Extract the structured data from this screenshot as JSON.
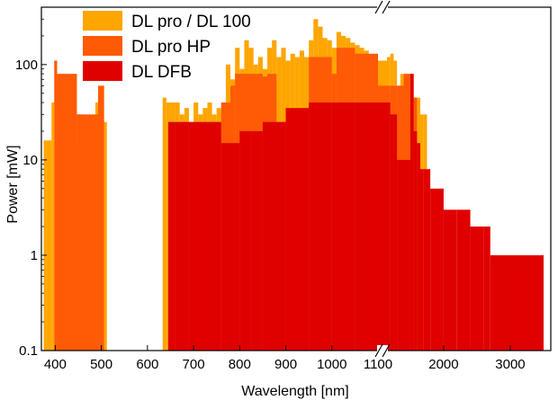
{
  "chart_data": {
    "type": "area",
    "xlabel": "Wavelength [nm]",
    "ylabel": "Power [mW]",
    "y_scale": "log",
    "ylim": [
      0.1,
      400
    ],
    "x_axis_break": "between 1100 nm and 1150 nm (//); linear 370–1100 nm on the left segment, compressed 1150–3500 nm on the right segment",
    "x_segments": [
      {
        "range": [
          370,
          1100
        ],
        "ticks": [
          400,
          500,
          600,
          700,
          800,
          900,
          1000,
          1100
        ]
      },
      {
        "range": [
          1150,
          3500
        ],
        "ticks": [
          2000,
          3000
        ]
      }
    ],
    "x_tick_labels": [
      "400",
      "500",
      "600",
      "700",
      "800",
      "900",
      "1000",
      "1100",
      "2000",
      "3000"
    ],
    "y_tick_labels": [
      "0.1",
      "1",
      "10",
      "100"
    ],
    "y_ticks": [
      0.1,
      1,
      10,
      100
    ],
    "legend_position": "top-left",
    "series": [
      {
        "name": "DL pro / DL 100",
        "color": "#ffa500",
        "points": [
          [
            375,
            16
          ],
          [
            381,
            16
          ],
          [
            392,
            40
          ],
          [
            398,
            110
          ],
          [
            404,
            40
          ],
          [
            410,
            45
          ],
          [
            416,
            40
          ],
          [
            420,
            45
          ],
          [
            425,
            40
          ],
          [
            442,
            15
          ],
          [
            447,
            30
          ],
          [
            452,
            30
          ],
          [
            458,
            15
          ],
          [
            465,
            20
          ],
          [
            472,
            25
          ],
          [
            478,
            15
          ],
          [
            487,
            40
          ],
          [
            493,
            10
          ],
          [
            500,
            25
          ],
          [
            506,
            25
          ],
          [
            512,
            10
          ],
          [
            633,
            45
          ],
          [
            641,
            40
          ],
          [
            650,
            40
          ],
          [
            660,
            40
          ],
          [
            670,
            30
          ],
          [
            680,
            35
          ],
          [
            690,
            25
          ],
          [
            700,
            40
          ],
          [
            710,
            30
          ],
          [
            720,
            35
          ],
          [
            730,
            40
          ],
          [
            740,
            30
          ],
          [
            750,
            35
          ],
          [
            760,
            40
          ],
          [
            770,
            100
          ],
          [
            780,
            70
          ],
          [
            790,
            150
          ],
          [
            800,
            90
          ],
          [
            810,
            180
          ],
          [
            820,
            150
          ],
          [
            830,
            100
          ],
          [
            840,
            120
          ],
          [
            850,
            90
          ],
          [
            860,
            150
          ],
          [
            870,
            180
          ],
          [
            880,
            120
          ],
          [
            890,
            150
          ],
          [
            900,
            110
          ],
          [
            910,
            130
          ],
          [
            920,
            120
          ],
          [
            930,
            140
          ],
          [
            940,
            120
          ],
          [
            950,
            180
          ],
          [
            960,
            300
          ],
          [
            970,
            250
          ],
          [
            980,
            190
          ],
          [
            990,
            180
          ],
          [
            1000,
            150
          ],
          [
            1010,
            220
          ],
          [
            1020,
            200
          ],
          [
            1030,
            190
          ],
          [
            1040,
            170
          ],
          [
            1050,
            160
          ],
          [
            1060,
            150
          ],
          [
            1070,
            140
          ],
          [
            1080,
            120
          ],
          [
            1090,
            110
          ],
          [
            1100,
            110
          ],
          [
            1150,
            120
          ],
          [
            1200,
            130
          ],
          [
            1250,
            110
          ],
          [
            1300,
            60
          ],
          [
            1350,
            80
          ],
          [
            1400,
            50
          ],
          [
            1450,
            30
          ],
          [
            1500,
            65
          ],
          [
            1550,
            45
          ],
          [
            1600,
            45
          ],
          [
            1650,
            30
          ],
          [
            1700,
            30
          ],
          [
            1750,
            25
          ]
        ]
      },
      {
        "name": "DL pro HP",
        "color": "#ff5a05",
        "points": [
          [
            398,
            110
          ],
          [
            404,
            80
          ],
          [
            447,
            30
          ],
          [
            493,
            60
          ],
          [
            506,
            25
          ],
          [
            760,
            40
          ],
          [
            780,
            60
          ],
          [
            790,
            80
          ],
          [
            850,
            75
          ],
          [
            860,
            80
          ],
          [
            880,
            60
          ],
          [
            950,
            120
          ],
          [
            1000,
            80
          ],
          [
            1010,
            150
          ],
          [
            1050,
            130
          ],
          [
            1100,
            60
          ],
          [
            1200,
            60
          ],
          [
            1300,
            60
          ],
          [
            1400,
            80
          ],
          [
            1550,
            45
          ],
          [
            1600,
            50
          ]
        ]
      },
      {
        "name": "DL DFB",
        "color": "#e00000",
        "points": [
          [
            645,
            25
          ],
          [
            660,
            25
          ],
          [
            690,
            25
          ],
          [
            760,
            15
          ],
          [
            800,
            20
          ],
          [
            825,
            20
          ],
          [
            850,
            25
          ],
          [
            900,
            35
          ],
          [
            950,
            40
          ],
          [
            1000,
            40
          ],
          [
            1050,
            40
          ],
          [
            1100,
            40
          ],
          [
            1150,
            40
          ],
          [
            1200,
            30
          ],
          [
            1250,
            30
          ],
          [
            1300,
            10
          ],
          [
            1400,
            10
          ],
          [
            1500,
            80
          ],
          [
            1550,
            20
          ],
          [
            1600,
            15
          ],
          [
            1650,
            8
          ],
          [
            1700,
            8
          ],
          [
            1800,
            5
          ],
          [
            2000,
            3
          ],
          [
            2200,
            3
          ],
          [
            2400,
            2
          ],
          [
            2600,
            2
          ],
          [
            2700,
            1
          ],
          [
            3000,
            1
          ],
          [
            3500,
            1
          ]
        ]
      }
    ]
  }
}
